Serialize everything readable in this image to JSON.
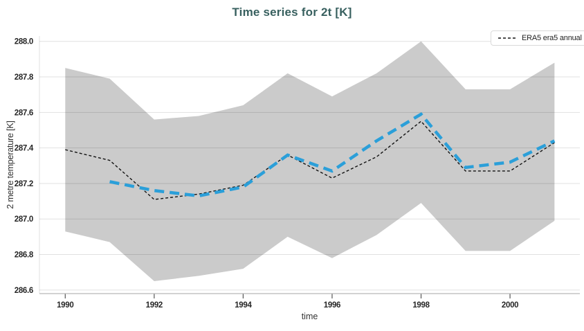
{
  "legend": {
    "position": "top-right",
    "items": [
      {
        "label": "ERA5 era5 annual",
        "line_style": "black dashed"
      }
    ]
  },
  "axes": {
    "x": {
      "label": "time",
      "tick_labels": [
        "1990",
        "1992",
        "1994",
        "1996",
        "1998",
        "2000"
      ]
    },
    "y": {
      "label": "2 metre temperature [K]",
      "tick_labels": [
        "286.6",
        "286.8",
        "287.0",
        "287.2",
        "287.4",
        "287.6",
        "287.8",
        "288.0"
      ]
    }
  },
  "colors": {
    "title": "#38605f",
    "band": "#cbcbcb",
    "annual_line": "#111111",
    "smoothed_line": "#2b9fd9",
    "grid": "rgba(0,0,0,0.12)"
  },
  "chart_data": {
    "type": "line",
    "title": "Time series for 2t [K]",
    "xlabel": "time",
    "ylabel": "2 metre temperature [K]",
    "xlim": [
      1989.42,
      2001.57
    ],
    "ylim": [
      286.58,
      288.03
    ],
    "xticks": [
      1990,
      1992,
      1994,
      1996,
      1998,
      2000
    ],
    "yticks": [
      286.6,
      286.8,
      287.0,
      287.2,
      287.4,
      287.6,
      287.8,
      288.0
    ],
    "grid": "horizontal",
    "legend_position": "top-right",
    "series": [
      {
        "name": "ERA5 era5 annual",
        "kind": "line",
        "color": "#111111",
        "dash": "4 3",
        "width": 1.4,
        "x": [
          1990,
          1991,
          1992,
          1993,
          1994,
          1995,
          1996,
          1997,
          1998,
          1999,
          2000,
          2001
        ],
        "values": [
          287.39,
          287.33,
          287.11,
          287.14,
          287.19,
          287.36,
          287.23,
          287.35,
          287.55,
          287.27,
          287.27,
          287.43
        ]
      },
      {
        "name": "unlabeled blue dashed smoothed line",
        "kind": "line",
        "color": "#2b9fd9",
        "dash": "14 8",
        "width": 4.5,
        "x": [
          1991,
          1992,
          1993,
          1994,
          1995,
          1996,
          1997,
          1998,
          1999,
          2000,
          2001
        ],
        "values": [
          287.21,
          287.16,
          287.13,
          287.18,
          287.36,
          287.27,
          287.44,
          287.59,
          287.29,
          287.32,
          287.44
        ]
      },
      {
        "name": "gray min-max envelope band",
        "kind": "band",
        "color": "#cbcbcb",
        "x": [
          1990,
          1991,
          1992,
          1993,
          1994,
          1995,
          1996,
          1997,
          1998,
          1999,
          2000,
          2001
        ],
        "upper": [
          287.85,
          287.79,
          287.56,
          287.58,
          287.64,
          287.82,
          287.69,
          287.82,
          288.0,
          287.73,
          287.73,
          287.88
        ],
        "lower": [
          286.93,
          286.87,
          286.65,
          286.68,
          286.72,
          286.9,
          286.78,
          286.91,
          287.09,
          286.82,
          286.82,
          286.99
        ]
      }
    ]
  }
}
